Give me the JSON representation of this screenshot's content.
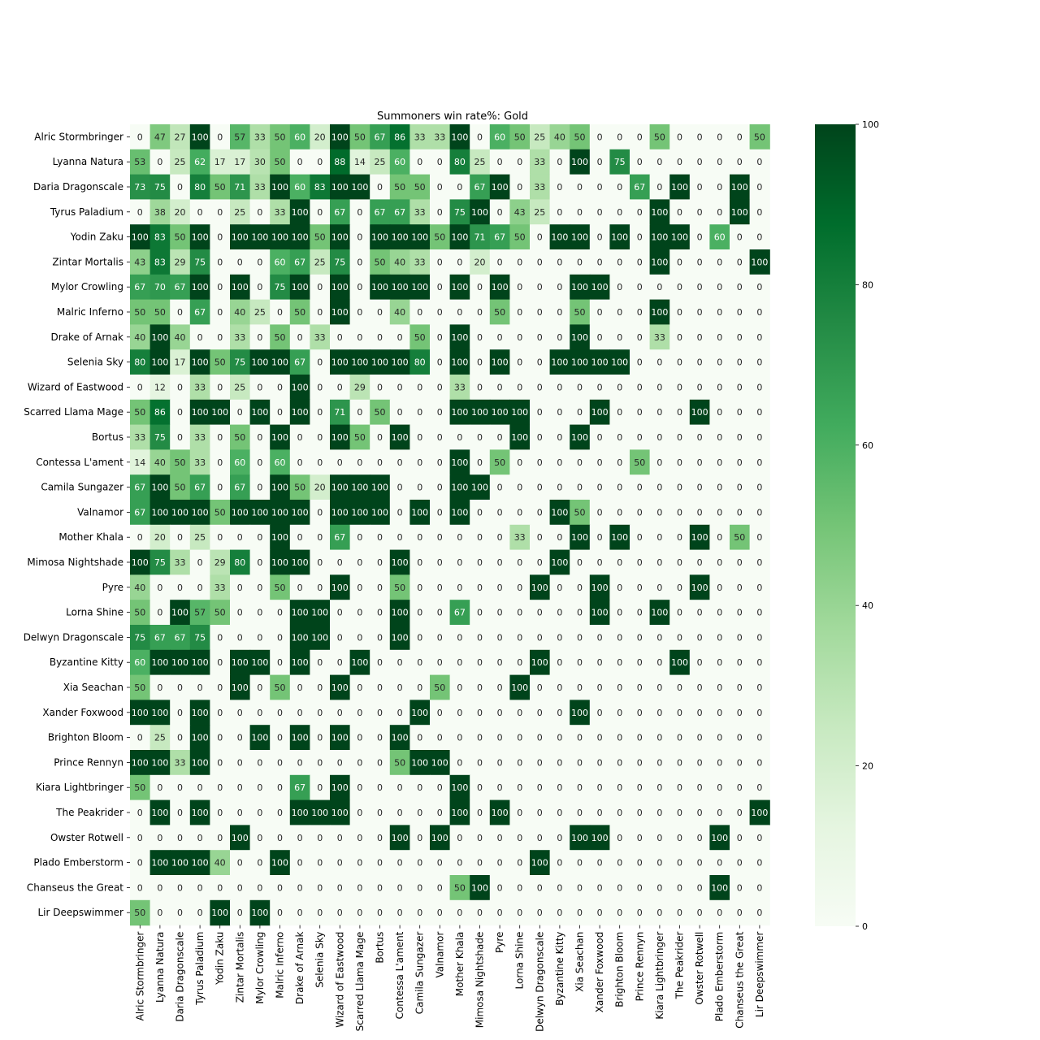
{
  "chart_data": {
    "type": "heatmap",
    "title": "Summoners win rate%: Gold",
    "xlabel": "",
    "ylabel": "",
    "labels": [
      "Alric Stormbringer",
      "Lyanna Natura",
      "Daria Dragonscale",
      "Tyrus Paladium",
      "Yodin Zaku",
      "Zintar Mortalis",
      "Mylor Crowling",
      "Malric Inferno",
      "Drake of Arnak",
      "Selenia Sky",
      "Wizard of Eastwood",
      "Scarred Llama Mage",
      "Bortus",
      "Contessa L'ament",
      "Camila Sungazer",
      "Valnamor",
      "Mother Khala",
      "Mimosa Nightshade",
      "Pyre",
      "Lorna Shine",
      "Delwyn Dragonscale",
      "Byzantine Kitty",
      "Xia Seachan",
      "Xander Foxwood",
      "Brighton Bloom",
      "Prince Rennyn",
      "Kiara Lightbringer",
      "The Peakrider",
      "Owster Rotwell",
      "Plado Emberstorm",
      "Chanseus the Great",
      "Lir Deepswimmer"
    ],
    "values": [
      [
        0,
        47,
        27,
        100,
        0,
        57,
        33,
        50,
        60,
        20,
        100,
        50,
        67,
        86,
        33,
        33,
        100,
        0,
        60,
        50,
        25,
        40,
        50,
        0,
        0,
        0,
        50,
        0,
        0,
        0,
        0,
        50
      ],
      [
        53,
        0,
        25,
        62,
        17,
        17,
        30,
        50,
        0,
        0,
        88,
        14,
        25,
        60,
        0,
        0,
        80,
        25,
        0,
        0,
        33,
        0,
        100,
        0,
        75,
        0,
        0,
        0,
        0,
        0,
        0,
        0
      ],
      [
        73,
        75,
        0,
        80,
        50,
        71,
        33,
        100,
        60,
        83,
        100,
        100,
        0,
        50,
        50,
        0,
        0,
        67,
        100,
        0,
        33,
        0,
        0,
        0,
        0,
        67,
        0,
        100,
        0,
        0,
        100,
        0
      ],
      [
        0,
        38,
        20,
        0,
        0,
        25,
        0,
        33,
        100,
        0,
        67,
        0,
        67,
        67,
        33,
        0,
        75,
        100,
        0,
        43,
        25,
        0,
        0,
        0,
        0,
        0,
        100,
        0,
        0,
        0,
        100,
        0
      ],
      [
        100,
        83,
        50,
        100,
        0,
        100,
        100,
        100,
        100,
        50,
        100,
        0,
        100,
        100,
        100,
        50,
        100,
        71,
        67,
        50,
        0,
        100,
        100,
        0,
        100,
        0,
        100,
        100,
        0,
        60,
        0,
        0
      ],
      [
        43,
        83,
        29,
        75,
        0,
        0,
        0,
        60,
        67,
        25,
        75,
        0,
        50,
        40,
        33,
        0,
        0,
        20,
        0,
        0,
        0,
        0,
        0,
        0,
        0,
        0,
        100,
        0,
        0,
        0,
        0,
        100
      ],
      [
        67,
        70,
        67,
        100,
        0,
        100,
        0,
        75,
        100,
        0,
        100,
        0,
        100,
        100,
        100,
        0,
        100,
        0,
        100,
        0,
        0,
        0,
        100,
        100,
        0,
        0,
        0,
        0,
        0,
        0,
        0,
        0
      ],
      [
        50,
        50,
        0,
        67,
        0,
        40,
        25,
        0,
        50,
        0,
        100,
        0,
        0,
        40,
        0,
        0,
        0,
        0,
        50,
        0,
        0,
        0,
        50,
        0,
        0,
        0,
        100,
        0,
        0,
        0,
        0,
        0
      ],
      [
        40,
        100,
        40,
        0,
        0,
        33,
        0,
        50,
        0,
        33,
        0,
        0,
        0,
        0,
        50,
        0,
        100,
        0,
        0,
        0,
        0,
        0,
        100,
        0,
        0,
        0,
        33,
        0,
        0,
        0,
        0,
        0
      ],
      [
        80,
        100,
        17,
        100,
        50,
        75,
        100,
        100,
        67,
        0,
        100,
        100,
        100,
        100,
        80,
        0,
        100,
        0,
        100,
        0,
        0,
        100,
        100,
        100,
        100,
        0,
        0,
        0,
        0,
        0,
        0,
        0
      ],
      [
        0,
        12,
        0,
        33,
        0,
        25,
        0,
        0,
        100,
        0,
        0,
        29,
        0,
        0,
        0,
        0,
        33,
        0,
        0,
        0,
        0,
        0,
        0,
        0,
        0,
        0,
        0,
        0,
        0,
        0,
        0,
        0
      ],
      [
        50,
        86,
        0,
        100,
        100,
        0,
        100,
        0,
        100,
        0,
        71,
        0,
        50,
        0,
        0,
        0,
        100,
        100,
        100,
        100,
        0,
        0,
        0,
        100,
        0,
        0,
        0,
        0,
        100,
        0,
        0,
        0
      ],
      [
        33,
        75,
        0,
        33,
        0,
        50,
        0,
        100,
        0,
        0,
        100,
        50,
        0,
        100,
        0,
        0,
        0,
        0,
        0,
        100,
        0,
        0,
        100,
        0,
        0,
        0,
        0,
        0,
        0,
        0,
        0,
        0
      ],
      [
        14,
        40,
        50,
        33,
        0,
        60,
        0,
        60,
        0,
        0,
        0,
        0,
        0,
        0,
        0,
        0,
        100,
        0,
        50,
        0,
        0,
        0,
        0,
        0,
        0,
        50,
        0,
        0,
        0,
        0,
        0,
        0
      ],
      [
        67,
        100,
        50,
        67,
        0,
        67,
        0,
        100,
        50,
        20,
        100,
        100,
        100,
        0,
        0,
        0,
        100,
        100,
        0,
        0,
        0,
        0,
        0,
        0,
        0,
        0,
        0,
        0,
        0,
        0,
        0,
        0
      ],
      [
        67,
        100,
        100,
        100,
        50,
        100,
        100,
        100,
        100,
        0,
        100,
        100,
        100,
        0,
        100,
        0,
        100,
        0,
        0,
        0,
        0,
        100,
        50,
        0,
        0,
        0,
        0,
        0,
        0,
        0,
        0,
        0
      ],
      [
        0,
        20,
        0,
        25,
        0,
        0,
        0,
        100,
        0,
        0,
        67,
        0,
        0,
        0,
        0,
        0,
        0,
        0,
        0,
        33,
        0,
        0,
        100,
        0,
        100,
        0,
        0,
        0,
        100,
        0,
        50,
        0
      ],
      [
        100,
        75,
        33,
        0,
        29,
        80,
        0,
        100,
        100,
        0,
        0,
        0,
        0,
        100,
        0,
        0,
        0,
        0,
        0,
        0,
        0,
        100,
        0,
        0,
        0,
        0,
        0,
        0,
        0,
        0,
        0,
        0
      ],
      [
        40,
        0,
        0,
        0,
        33,
        0,
        0,
        50,
        0,
        0,
        100,
        0,
        0,
        50,
        0,
        0,
        0,
        0,
        0,
        0,
        100,
        0,
        0,
        100,
        0,
        0,
        0,
        0,
        100,
        0,
        0,
        0
      ],
      [
        50,
        0,
        100,
        57,
        50,
        0,
        0,
        0,
        100,
        100,
        0,
        0,
        0,
        100,
        0,
        0,
        67,
        0,
        0,
        0,
        0,
        0,
        0,
        100,
        0,
        0,
        100,
        0,
        0,
        0,
        0,
        0
      ],
      [
        75,
        67,
        67,
        75,
        0,
        0,
        0,
        0,
        100,
        100,
        0,
        0,
        0,
        100,
        0,
        0,
        0,
        0,
        0,
        0,
        0,
        0,
        0,
        0,
        0,
        0,
        0,
        0,
        0,
        0,
        0,
        0
      ],
      [
        60,
        100,
        100,
        100,
        0,
        100,
        100,
        0,
        100,
        0,
        0,
        100,
        0,
        0,
        0,
        0,
        0,
        0,
        0,
        0,
        100,
        0,
        0,
        0,
        0,
        0,
        0,
        100,
        0,
        0,
        0,
        0
      ],
      [
        50,
        0,
        0,
        0,
        0,
        100,
        0,
        50,
        0,
        0,
        100,
        0,
        0,
        0,
        0,
        50,
        0,
        0,
        0,
        100,
        0,
        0,
        0,
        0,
        0,
        0,
        0,
        0,
        0,
        0,
        0,
        0
      ],
      [
        100,
        100,
        0,
        100,
        0,
        0,
        0,
        0,
        0,
        0,
        0,
        0,
        0,
        0,
        100,
        0,
        0,
        0,
        0,
        0,
        0,
        0,
        100,
        0,
        0,
        0,
        0,
        0,
        0,
        0,
        0,
        0
      ],
      [
        0,
        25,
        0,
        100,
        0,
        0,
        100,
        0,
        100,
        0,
        100,
        0,
        0,
        100,
        0,
        0,
        0,
        0,
        0,
        0,
        0,
        0,
        0,
        0,
        0,
        0,
        0,
        0,
        0,
        0,
        0,
        0
      ],
      [
        100,
        100,
        33,
        100,
        0,
        0,
        0,
        0,
        0,
        0,
        0,
        0,
        0,
        50,
        100,
        100,
        0,
        0,
        0,
        0,
        0,
        0,
        0,
        0,
        0,
        0,
        0,
        0,
        0,
        0,
        0,
        0
      ],
      [
        50,
        0,
        0,
        0,
        0,
        0,
        0,
        0,
        67,
        0,
        100,
        0,
        0,
        0,
        0,
        0,
        100,
        0,
        0,
        0,
        0,
        0,
        0,
        0,
        0,
        0,
        0,
        0,
        0,
        0,
        0,
        0
      ],
      [
        0,
        100,
        0,
        100,
        0,
        0,
        0,
        0,
        100,
        100,
        100,
        0,
        0,
        0,
        0,
        0,
        100,
        0,
        100,
        0,
        0,
        0,
        0,
        0,
        0,
        0,
        0,
        0,
        0,
        0,
        0,
        100
      ],
      [
        0,
        0,
        0,
        0,
        0,
        100,
        0,
        0,
        0,
        0,
        0,
        0,
        0,
        100,
        0,
        100,
        0,
        0,
        0,
        0,
        0,
        0,
        100,
        100,
        0,
        0,
        0,
        0,
        0,
        100,
        0,
        0
      ],
      [
        0,
        100,
        100,
        100,
        40,
        0,
        0,
        100,
        0,
        0,
        0,
        0,
        0,
        0,
        0,
        0,
        0,
        0,
        0,
        0,
        100,
        0,
        0,
        0,
        0,
        0,
        0,
        0,
        0,
        0,
        0,
        0
      ],
      [
        0,
        0,
        0,
        0,
        0,
        0,
        0,
        0,
        0,
        0,
        0,
        0,
        0,
        0,
        0,
        0,
        50,
        100,
        0,
        0,
        0,
        0,
        0,
        0,
        0,
        0,
        0,
        0,
        0,
        100,
        0,
        0
      ],
      [
        50,
        0,
        0,
        0,
        100,
        0,
        100,
        0,
        0,
        0,
        0,
        0,
        0,
        0,
        0,
        0,
        0,
        0,
        0,
        0,
        0,
        0,
        0,
        0,
        0,
        0,
        0,
        0,
        0,
        0,
        0,
        0
      ]
    ],
    "colorbar": {
      "range": [
        0,
        100
      ],
      "ticks": [
        0,
        20,
        40,
        60,
        80,
        100
      ],
      "scale_colors": [
        "#f7fcf5",
        "#e5f5e0",
        "#c7e9c0",
        "#a1d99b",
        "#74c476",
        "#41ab5d",
        "#238b45",
        "#006d2c",
        "#00441b"
      ]
    },
    "annotation_colors": {
      "light": "#ffffff",
      "dark": "#262626"
    },
    "grid": false,
    "legend": "colorbar-right"
  }
}
